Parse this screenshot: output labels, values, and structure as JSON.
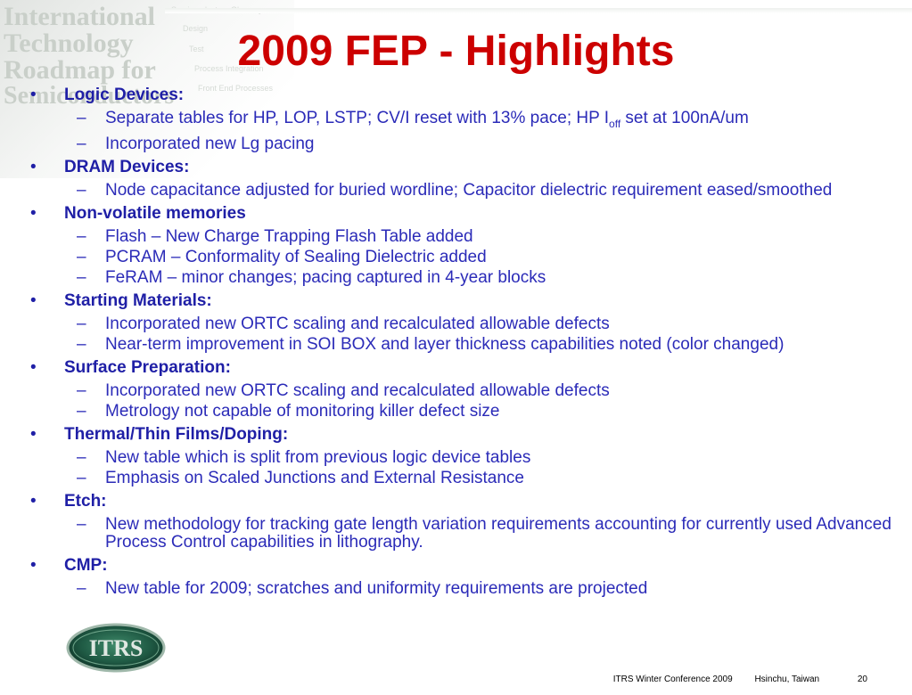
{
  "watermark": {
    "lines": [
      "International",
      "Technology",
      "Roadmap for",
      "Semiconductors"
    ],
    "menu": [
      "Semiconductors Glossary",
      "Design",
      "Test",
      "Process Integration",
      "Front End Processes"
    ]
  },
  "slide": {
    "title": "2009 FEP - Highlights",
    "bullets": [
      {
        "label": "Logic Devices:",
        "subs": [
          {
            "pre": "Separate tables for HP, LOP, LSTP; CV/I reset with 13% pace; HP I",
            "sub": "off",
            "post": " set at 100nA/um"
          },
          {
            "pre": "Incorporated new Lg pacing"
          }
        ]
      },
      {
        "label": "DRAM Devices:",
        "subs": [
          {
            "pre": "Node capacitance adjusted for buried wordline; Capacitor dielectric requirement eased/smoothed"
          }
        ]
      },
      {
        "label": "Non-volatile memories",
        "subs": [
          {
            "pre": "Flash – New Charge Trapping Flash Table added"
          },
          {
            "pre": "PCRAM – Conformality of Sealing Dielectric added"
          },
          {
            "pre": "FeRAM – minor changes; pacing captured in 4-year blocks"
          }
        ]
      },
      {
        "label": "Starting Materials:",
        "subs": [
          {
            "pre": "Incorporated new ORTC scaling and recalculated allowable defects"
          },
          {
            "pre": "Near-term improvement in SOI BOX and layer thickness capabilities noted (color changed)"
          }
        ]
      },
      {
        "label": "Surface Preparation:",
        "subs": [
          {
            "pre": "Incorporated new ORTC scaling and recalculated allowable defects"
          },
          {
            "pre": "Metrology not capable of monitoring killer defect size"
          }
        ]
      },
      {
        "label": "Thermal/Thin Films/Doping:",
        "subs": [
          {
            "pre": "New table which is split from previous logic device tables"
          },
          {
            "pre": "Emphasis on Scaled Junctions and External Resistance"
          }
        ]
      },
      {
        "label": "Etch:",
        "subs": [
          {
            "pre": "New methodology for tracking gate length variation requirements accounting for currently used Advanced Process Control capabilities in lithography."
          }
        ]
      },
      {
        "label": "CMP:",
        "subs": [
          {
            "pre": "New table for 2009; scratches and uniformity requirements are projected"
          }
        ]
      }
    ]
  },
  "logo": {
    "text": "ITRS"
  },
  "footer": {
    "conference": "ITRS Winter Conference 2009",
    "location": "Hsinchu, Taiwan",
    "page": "20"
  },
  "colors": {
    "title": "#cc0000",
    "body": "#2a2ab0"
  }
}
